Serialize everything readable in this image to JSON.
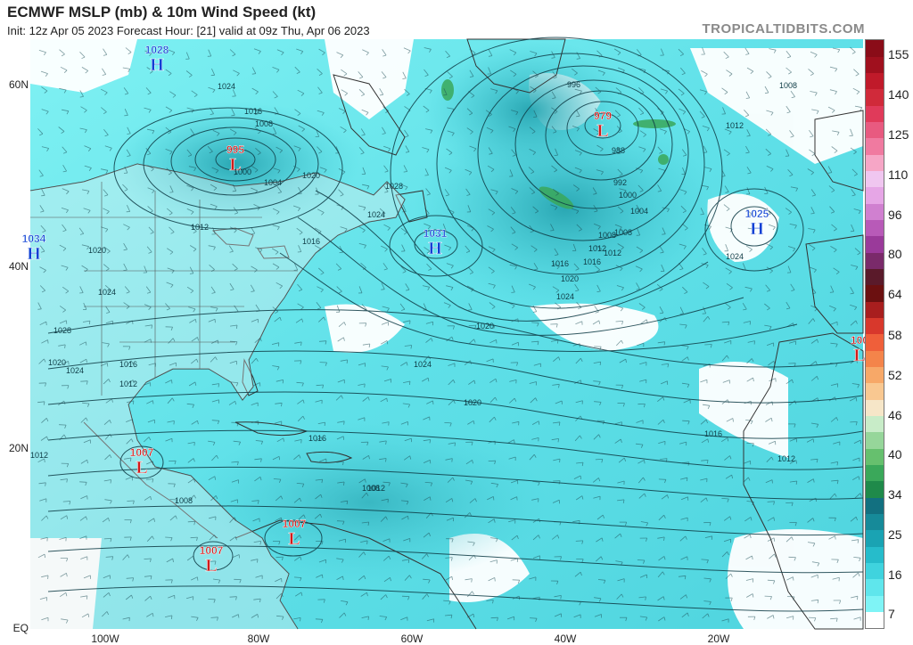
{
  "header": {
    "title": "ECMWF MSLP (mb) & 10m Wind Speed (kt)",
    "subtitle": "Init: 12z Apr 05 2023   Forecast Hour: [21]   valid at 09z Thu, Apr 06 2023",
    "source": "TROPICALTIDBITS.COM"
  },
  "axes": {
    "lat_labels": [
      "60N",
      "40N",
      "20N",
      "EQ"
    ],
    "lon_labels": [
      "100W",
      "80W",
      "60W",
      "40W",
      "20W"
    ]
  },
  "colorbar": {
    "labels": [
      "155",
      "140",
      "125",
      "110",
      "96",
      "80",
      "64",
      "58",
      "52",
      "46",
      "40",
      "34",
      "25",
      "16",
      "7"
    ],
    "colors": [
      "#ffffff",
      "#7ff4f6",
      "#5fe6ec",
      "#3fd3de",
      "#26bccb",
      "#1aa3b3",
      "#168a99",
      "#127080",
      "#1f8a4a",
      "#3aa85a",
      "#66c06e",
      "#96d69a",
      "#c8ecc8",
      "#f6e6c8",
      "#f9c891",
      "#f7a868",
      "#f4844a",
      "#ef5f3a",
      "#d8382c",
      "#a81e1e",
      "#6b1010",
      "#5a1a2a",
      "#7a2a6a",
      "#9a3a9a",
      "#b85ab8",
      "#d080d0",
      "#e6a6e6",
      "#f0c6f0",
      "#f6a6c6",
      "#f07aa0",
      "#e85a80",
      "#e03a5a",
      "#d02a3a",
      "#c01a2a",
      "#a0101e",
      "#8a0c18"
    ]
  },
  "pressure_centers": [
    {
      "type": "H",
      "value": "1028"
    },
    {
      "type": "L",
      "value": "995"
    },
    {
      "type": "H",
      "value": "1031"
    },
    {
      "type": "L",
      "value": "979"
    },
    {
      "type": "H",
      "value": "1025"
    },
    {
      "type": "H",
      "value": "1034"
    },
    {
      "type": "L",
      "value": "1007"
    },
    {
      "type": "L",
      "value": "1007"
    },
    {
      "type": "L",
      "value": "1007"
    },
    {
      "type": "L",
      "value": "100"
    }
  ],
  "isobar_labels": [
    "1024",
    "1016",
    "1008",
    "1000",
    "1004",
    "1020",
    "1028",
    "1024",
    "1016",
    "1012",
    "1020",
    "1024",
    "1028",
    "1024",
    "1020",
    "1016",
    "1012",
    "1012",
    "1008",
    "1008",
    "1012",
    "1016",
    "1020",
    "1024",
    "1020",
    "1016",
    "1012",
    "1008",
    "1004",
    "1000",
    "992",
    "988",
    "996",
    "1008",
    "1012",
    "1016",
    "1020",
    "1024",
    "1024",
    "1012",
    "1008",
    "1012",
    "1016"
  ]
}
